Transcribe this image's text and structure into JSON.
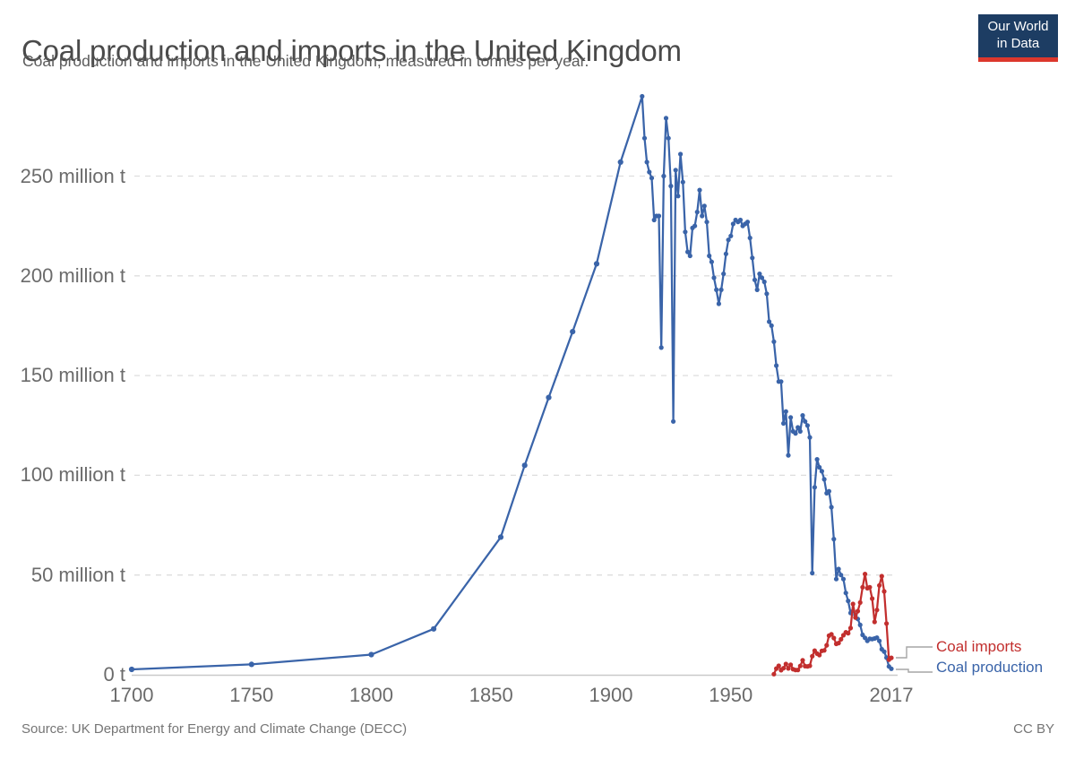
{
  "header": {
    "title": "Coal production and imports in the United Kingdom",
    "subtitle": "Coal production and imports in the United Kingdom, measured in tonnes per year."
  },
  "logo": {
    "line1": "Our World",
    "line2": "in Data",
    "bg_color": "#1d3d63",
    "bar_color": "#dc372c"
  },
  "footer": {
    "source": "Source: UK Department for Energy and Climate Change (DECC)",
    "license": "CC BY"
  },
  "colors": {
    "production_blue": "#3a64a9",
    "imports_red": "#c22f2e",
    "gridline": "#dedede",
    "baseline": "#c9c9c9",
    "tick_text": "#6b6b6b",
    "connector": "#a6a6a6"
  },
  "chart_data": {
    "type": "line",
    "title": "Coal production and imports in the United Kingdom",
    "ylabel": "",
    "xlabel": "",
    "unit": "tonnes per year",
    "xlim": [
      1700,
      2017
    ],
    "ylim": [
      0,
      300
    ],
    "grid": "horizontal dashed",
    "legend_position": "end-of-line labels, right",
    "x_ticks": [
      {
        "label": "1700",
        "year": 1700
      },
      {
        "label": "1750",
        "year": 1750
      },
      {
        "label": "1800",
        "year": 1800
      },
      {
        "label": "1850",
        "year": 1850
      },
      {
        "label": "1900",
        "year": 1900
      },
      {
        "label": "1950",
        "year": 1950
      },
      {
        "label": "2017",
        "year": 2017
      }
    ],
    "y_ticks": [
      {
        "label": "0 t",
        "value": 0
      },
      {
        "label": "50 million t",
        "value": 50
      },
      {
        "label": "100 million t",
        "value": 100
      },
      {
        "label": "150 million t",
        "value": 150
      },
      {
        "label": "200 million t",
        "value": 200
      },
      {
        "label": "250 million t",
        "value": 250
      }
    ],
    "series": [
      {
        "name": "Coal production",
        "color": "#3a64a9",
        "points": [
          [
            1700,
            2.7
          ],
          [
            1750,
            5.2
          ],
          [
            1800,
            10.1
          ],
          [
            1826,
            23
          ],
          [
            1854,
            69
          ],
          [
            1864,
            105
          ],
          [
            1874,
            139
          ],
          [
            1884,
            172
          ],
          [
            1894,
            206
          ],
          [
            1904,
            257
          ],
          [
            1913,
            290
          ],
          [
            1914,
            269
          ],
          [
            1915,
            257
          ],
          [
            1916,
            252
          ],
          [
            1917,
            249
          ],
          [
            1918,
            228
          ],
          [
            1919,
            230
          ],
          [
            1920,
            230
          ],
          [
            1921,
            164
          ],
          [
            1922,
            250
          ],
          [
            1923,
            279
          ],
          [
            1924,
            269
          ],
          [
            1925,
            245
          ],
          [
            1926,
            127
          ],
          [
            1927,
            253
          ],
          [
            1928,
            240
          ],
          [
            1929,
            261
          ],
          [
            1930,
            247
          ],
          [
            1931,
            222
          ],
          [
            1932,
            212
          ],
          [
            1933,
            210
          ],
          [
            1934,
            224
          ],
          [
            1935,
            225
          ],
          [
            1936,
            232
          ],
          [
            1937,
            243
          ],
          [
            1938,
            230
          ],
          [
            1939,
            235
          ],
          [
            1940,
            227
          ],
          [
            1941,
            210
          ],
          [
            1942,
            207
          ],
          [
            1943,
            199
          ],
          [
            1944,
            193
          ],
          [
            1945,
            186
          ],
          [
            1946,
            193
          ],
          [
            1947,
            201
          ],
          [
            1948,
            211
          ],
          [
            1949,
            218
          ],
          [
            1950,
            220
          ],
          [
            1951,
            226
          ],
          [
            1952,
            228
          ],
          [
            1953,
            227
          ],
          [
            1954,
            228
          ],
          [
            1955,
            225
          ],
          [
            1956,
            226
          ],
          [
            1957,
            227
          ],
          [
            1958,
            219
          ],
          [
            1959,
            209
          ],
          [
            1960,
            198
          ],
          [
            1961,
            193
          ],
          [
            1962,
            201
          ],
          [
            1963,
            199
          ],
          [
            1964,
            197
          ],
          [
            1965,
            191
          ],
          [
            1966,
            177
          ],
          [
            1967,
            175
          ],
          [
            1968,
            167
          ],
          [
            1969,
            155
          ],
          [
            1970,
            147
          ],
          [
            1971,
            147
          ],
          [
            1972,
            126
          ],
          [
            1973,
            132
          ],
          [
            1974,
            110
          ],
          [
            1975,
            129
          ],
          [
            1976,
            122
          ],
          [
            1977,
            121
          ],
          [
            1978,
            124
          ],
          [
            1979,
            122
          ],
          [
            1980,
            130
          ],
          [
            1981,
            127
          ],
          [
            1982,
            125
          ],
          [
            1983,
            119
          ],
          [
            1984,
            51
          ],
          [
            1985,
            94
          ],
          [
            1986,
            108
          ],
          [
            1987,
            104
          ],
          [
            1988,
            102
          ],
          [
            1989,
            98
          ],
          [
            1990,
            91
          ],
          [
            1991,
            92
          ],
          [
            1992,
            84
          ],
          [
            1993,
            68
          ],
          [
            1994,
            48
          ],
          [
            1995,
            53
          ],
          [
            1996,
            50
          ],
          [
            1997,
            48
          ],
          [
            1998,
            41
          ],
          [
            1999,
            37
          ],
          [
            2000,
            31
          ],
          [
            2001,
            32
          ],
          [
            2002,
            30
          ],
          [
            2003,
            28
          ],
          [
            2004,
            25
          ],
          [
            2005,
            20
          ],
          [
            2006,
            18.5
          ],
          [
            2007,
            17
          ],
          [
            2008,
            18
          ],
          [
            2009,
            17.9
          ],
          [
            2010,
            18.2
          ],
          [
            2011,
            18.6
          ],
          [
            2012,
            17
          ],
          [
            2013,
            12.8
          ],
          [
            2014,
            11.6
          ],
          [
            2015,
            8.6
          ],
          [
            2016,
            4.2
          ],
          [
            2017,
            3
          ]
        ]
      },
      {
        "name": "Coal imports",
        "color": "#c22f2e",
        "points": [
          [
            1968,
            0.3
          ],
          [
            1969,
            3.1
          ],
          [
            1970,
            4.5
          ],
          [
            1971,
            2.3
          ],
          [
            1972,
            3.3
          ],
          [
            1973,
            5.4
          ],
          [
            1974,
            3.2
          ],
          [
            1975,
            5.0
          ],
          [
            1976,
            2.8
          ],
          [
            1977,
            2.4
          ],
          [
            1978,
            2.4
          ],
          [
            1979,
            4.4
          ],
          [
            1980,
            7.3
          ],
          [
            1981,
            4.3
          ],
          [
            1982,
            4.2
          ],
          [
            1983,
            4.5
          ],
          [
            1984,
            9.3
          ],
          [
            1985,
            12.1
          ],
          [
            1986,
            10.6
          ],
          [
            1987,
            9.9
          ],
          [
            1988,
            12.0
          ],
          [
            1989,
            12.2
          ],
          [
            1990,
            14.8
          ],
          [
            1991,
            19.6
          ],
          [
            1992,
            20.3
          ],
          [
            1993,
            18.4
          ],
          [
            1994,
            15.5
          ],
          [
            1995,
            15.9
          ],
          [
            1996,
            17.8
          ],
          [
            1997,
            19.8
          ],
          [
            1998,
            21.3
          ],
          [
            1999,
            20.8
          ],
          [
            2000,
            23.4
          ],
          [
            2001,
            35.5
          ],
          [
            2002,
            28.7
          ],
          [
            2003,
            31.9
          ],
          [
            2004,
            36.2
          ],
          [
            2005,
            43.9
          ],
          [
            2006,
            50.5
          ],
          [
            2007,
            43.4
          ],
          [
            2008,
            43.9
          ],
          [
            2009,
            38.2
          ],
          [
            2010,
            26.5
          ],
          [
            2011,
            32.5
          ],
          [
            2012,
            44.8
          ],
          [
            2013,
            49.4
          ],
          [
            2014,
            41.8
          ],
          [
            2015,
            25.7
          ],
          [
            2016,
            7.6
          ],
          [
            2017,
            8.5
          ]
        ]
      }
    ]
  }
}
